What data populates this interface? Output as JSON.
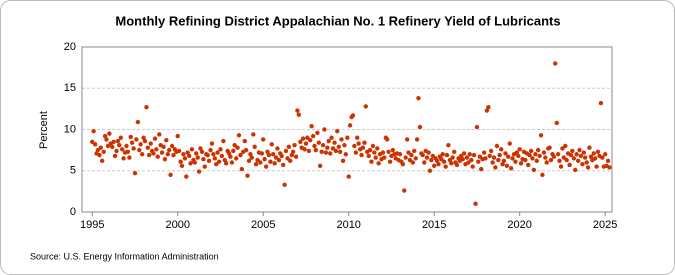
{
  "chart_data": {
    "type": "scatter",
    "title": "Monthly Refining District Appalachian No. 1 Refinery Yield of Lubricants",
    "y_label": "Percent",
    "source": "Source: U.S. Energy Information Administration",
    "color": "#cc3300",
    "grid": true,
    "xlim": [
      1994.4,
      2025.4
    ],
    "ylim": [
      0,
      20
    ],
    "xticks": [
      1995,
      2000,
      2005,
      2010,
      2015,
      2020,
      2025
    ],
    "yticks": [
      0,
      5,
      10,
      15,
      20
    ],
    "x": [
      1995,
      1995.08,
      1995.17,
      1995.25,
      1995.33,
      1995.42,
      1995.5,
      1995.58,
      1995.67,
      1995.75,
      1995.83,
      1995.92,
      1996,
      1996.08,
      1996.17,
      1996.25,
      1996.33,
      1996.42,
      1996.5,
      1996.58,
      1996.67,
      1996.75,
      1996.83,
      1996.92,
      1997,
      1997.08,
      1997.17,
      1997.25,
      1997.33,
      1997.42,
      1997.5,
      1997.58,
      1997.67,
      1997.75,
      1997.83,
      1997.92,
      1998,
      1998.08,
      1998.17,
      1998.25,
      1998.33,
      1998.42,
      1998.5,
      1998.58,
      1998.67,
      1998.75,
      1998.83,
      1998.92,
      1999,
      1999.08,
      1999.17,
      1999.25,
      1999.33,
      1999.42,
      1999.5,
      1999.58,
      1999.67,
      1999.75,
      1999.83,
      1999.92,
      2000,
      2000.08,
      2000.17,
      2000.25,
      2000.33,
      2000.42,
      2000.5,
      2000.58,
      2000.67,
      2000.75,
      2000.83,
      2000.92,
      2001,
      2001.08,
      2001.17,
      2001.25,
      2001.33,
      2001.42,
      2001.5,
      2001.58,
      2001.67,
      2001.75,
      2001.83,
      2001.92,
      2002,
      2002.08,
      2002.17,
      2002.25,
      2002.33,
      2002.42,
      2002.5,
      2002.58,
      2002.67,
      2002.75,
      2002.83,
      2002.92,
      2003,
      2003.08,
      2003.17,
      2003.25,
      2003.33,
      2003.42,
      2003.5,
      2003.58,
      2003.67,
      2003.75,
      2003.83,
      2003.92,
      2004,
      2004.08,
      2004.17,
      2004.25,
      2004.33,
      2004.42,
      2004.5,
      2004.58,
      2004.67,
      2004.75,
      2004.83,
      2004.92,
      2005,
      2005.08,
      2005.17,
      2005.25,
      2005.33,
      2005.42,
      2005.5,
      2005.58,
      2005.67,
      2005.75,
      2005.83,
      2005.92,
      2006,
      2006.08,
      2006.17,
      2006.25,
      2006.33,
      2006.42,
      2006.5,
      2006.58,
      2006.67,
      2006.75,
      2006.83,
      2006.92,
      2007,
      2007.08,
      2007.17,
      2007.25,
      2007.33,
      2007.42,
      2007.5,
      2007.58,
      2007.67,
      2007.75,
      2007.83,
      2007.92,
      2008,
      2008.08,
      2008.17,
      2008.25,
      2008.33,
      2008.42,
      2008.5,
      2008.58,
      2008.67,
      2008.75,
      2008.83,
      2008.92,
      2009,
      2009.08,
      2009.17,
      2009.25,
      2009.33,
      2009.42,
      2009.5,
      2009.58,
      2009.67,
      2009.75,
      2009.83,
      2009.92,
      2010,
      2010.08,
      2010.17,
      2010.25,
      2010.33,
      2010.42,
      2010.5,
      2010.58,
      2010.67,
      2010.75,
      2010.83,
      2010.92,
      2011,
      2011.08,
      2011.17,
      2011.25,
      2011.33,
      2011.42,
      2011.5,
      2011.58,
      2011.67,
      2011.75,
      2011.83,
      2011.92,
      2012,
      2012.08,
      2012.17,
      2012.25,
      2012.33,
      2012.42,
      2012.5,
      2012.58,
      2012.67,
      2012.75,
      2012.83,
      2012.92,
      2013,
      2013.08,
      2013.17,
      2013.25,
      2013.33,
      2013.42,
      2013.5,
      2013.58,
      2013.67,
      2013.75,
      2013.83,
      2013.92,
      2014,
      2014.08,
      2014.17,
      2014.25,
      2014.33,
      2014.42,
      2014.5,
      2014.58,
      2014.67,
      2014.75,
      2014.83,
      2014.92,
      2015,
      2015.08,
      2015.17,
      2015.25,
      2015.33,
      2015.42,
      2015.5,
      2015.58,
      2015.67,
      2015.75,
      2015.83,
      2015.92,
      2016,
      2016.08,
      2016.17,
      2016.25,
      2016.33,
      2016.42,
      2016.5,
      2016.58,
      2016.67,
      2016.75,
      2016.83,
      2016.92,
      2017,
      2017.08,
      2017.17,
      2017.25,
      2017.33,
      2017.42,
      2017.5,
      2017.58,
      2017.67,
      2017.75,
      2017.83,
      2017.92,
      2018,
      2018.08,
      2018.17,
      2018.25,
      2018.33,
      2018.42,
      2018.5,
      2018.58,
      2018.67,
      2018.75,
      2018.83,
      2018.92,
      2019,
      2019.08,
      2019.17,
      2019.25,
      2019.33,
      2019.42,
      2019.5,
      2019.58,
      2019.67,
      2019.75,
      2019.83,
      2019.92,
      2020,
      2020.08,
      2020.17,
      2020.25,
      2020.33,
      2020.42,
      2020.5,
      2020.58,
      2020.67,
      2020.75,
      2020.83,
      2020.92,
      2021,
      2021.08,
      2021.17,
      2021.25,
      2021.33,
      2021.42,
      2021.5,
      2021.58,
      2021.67,
      2021.75,
      2021.83,
      2021.92,
      2022,
      2022.08,
      2022.17,
      2022.25,
      2022.33,
      2022.42,
      2022.5,
      2022.58,
      2022.67,
      2022.75,
      2022.83,
      2022.92,
      2023,
      2023.08,
      2023.17,
      2023.25,
      2023.33,
      2023.42,
      2023.5,
      2023.58,
      2023.67,
      2023.75,
      2023.83,
      2023.92,
      2024,
      2024.08,
      2024.17,
      2024.25,
      2024.33,
      2024.42,
      2024.5,
      2024.58,
      2024.67,
      2024.75,
      2024.83,
      2024.92,
      2025,
      2025.08,
      2025.17,
      2025.25
    ],
    "values": [
      8.5,
      9.8,
      8.2,
      7.1,
      7.5,
      6.9,
      7.8,
      6.2,
      7.3,
      9.2,
      8.8,
      8.0,
      9.5,
      8.3,
      7.9,
      8.5,
      6.8,
      7.4,
      8.6,
      8.1,
      9.0,
      7.6,
      6.5,
      7.2,
      8.0,
      7.3,
      6.6,
      9.1,
      8.4,
      7.7,
      4.7,
      8.8,
      10.9,
      7.5,
      8.2,
      7.0,
      9.0,
      8.6,
      12.7,
      7.8,
      6.9,
      8.3,
      7.4,
      7.1,
      8.9,
      7.6,
      6.7,
      9.4,
      8.1,
      7.2,
      7.9,
      6.4,
      8.7,
      7.0,
      7.5,
      4.5,
      8.0,
      6.9,
      7.6,
      7.3,
      9.2,
      7.4,
      6.1,
      5.6,
      7.0,
      6.5,
      4.3,
      7.2,
      6.8,
      5.9,
      7.6,
      6.3,
      6.0,
      7.1,
      6.6,
      4.9,
      7.7,
      7.3,
      6.4,
      5.5,
      7.0,
      6.9,
      6.2,
      7.5,
      8.3,
      7.0,
      6.5,
      5.8,
      7.2,
      6.1,
      7.6,
      6.8,
      8.6,
      6.3,
      5.9,
      7.4,
      7.1,
      6.7,
      6.0,
      7.4,
      8.1,
      6.5,
      7.8,
      9.3,
      6.9,
      5.2,
      7.3,
      8.6,
      7.5,
      4.4,
      6.2,
      7.0,
      6.6,
      9.4,
      7.9,
      5.8,
      6.3,
      7.2,
      6.0,
      7.1,
      8.8,
      6.4,
      5.5,
      7.3,
      6.9,
      6.1,
      8.2,
      7.0,
      5.9,
      6.6,
      7.7,
      6.3,
      7.1,
      6.8,
      5.7,
      3.3,
      7.4,
      6.5,
      7.9,
      6.2,
      6.9,
      7.3,
      8.1,
      6.7,
      12.3,
      11.8,
      8.5,
      7.8,
      8.9,
      7.6,
      8.3,
      9.0,
      7.4,
      8.7,
      10.4,
      9.2,
      8.0,
      7.5,
      9.6,
      8.4,
      5.6,
      7.3,
      8.1,
      10.0,
      7.2,
      7.8,
      8.6,
      7.1,
      9.0,
      7.7,
      8.4,
      7.4,
      9.8,
      7.9,
      7.3,
      8.8,
      6.2,
      8.1,
      7.0,
      9.0,
      4.3,
      10.5,
      11.5,
      11.7,
      8.0,
      7.2,
      9.0,
      8.3,
      7.6,
      6.9,
      7.8,
      8.4,
      12.8,
      7.3,
      6.8,
      7.5,
      6.1,
      8.0,
      7.2,
      6.6,
      7.7,
      5.9,
      7.0,
      6.4,
      7.2,
      6.6,
      9.0,
      8.8,
      7.3,
      6.1,
      6.8,
      7.5,
      7.0,
      6.5,
      7.1,
      6.3,
      7.0,
      6.1,
      5.8,
      2.6,
      6.6,
      8.8,
      7.2,
      6.3,
      6.9,
      6.0,
      7.4,
      6.5,
      8.8,
      13.8,
      10.3,
      7.1,
      6.9,
      6.0,
      7.4,
      6.6,
      7.2,
      5.0,
      6.3,
      6.8,
      5.6,
      6.5,
      6.2,
      5.8,
      6.7,
      6.4,
      7.0,
      6.1,
      5.5,
      6.9,
      8.1,
      6.3,
      5.9,
      6.6,
      7.3,
      6.0,
      5.7,
      6.5,
      6.2,
      6.8,
      6.4,
      7.1,
      5.8,
      6.6,
      6.0,
      7.0,
      6.3,
      5.5,
      6.9,
      1.0,
      10.3,
      6.1,
      6.7,
      5.2,
      6.4,
      7.2,
      6.5,
      12.3,
      12.7,
      6.8,
      7.4,
      6.0,
      6.6,
      5.4,
      8.0,
      6.3,
      6.9,
      7.6,
      5.8,
      6.2,
      7.1,
      5.6,
      6.7,
      8.3,
      5.3,
      6.5,
      7.0,
      6.1,
      7.2,
      6.8,
      7.6,
      5.9,
      6.4,
      7.3,
      6.3,
      7.1,
      5.7,
      6.9,
      7.4,
      6.5,
      5.1,
      7.0,
      6.2,
      7.5,
      6.8,
      9.3,
      4.5,
      7.2,
      6.6,
      6.0,
      7.7,
      7.8,
      6.3,
      7.0,
      6.7,
      18.0,
      10.8,
      7.0,
      6.2,
      5.5,
      7.7,
      6.6,
      8.0,
      6.3,
      7.1,
      5.7,
      6.9,
      7.4,
      6.5,
      5.1,
      7.0,
      6.2,
      7.5,
      6.8,
      5.8,
      7.2,
      6.6,
      6.0,
      5.4,
      7.8,
      6.7,
      6.3,
      7.1,
      6.5,
      5.5,
      7.3,
      6.8,
      13.2,
      6.6,
      5.5,
      7.0,
      5.6,
      6.2,
      5.4
    ]
  }
}
